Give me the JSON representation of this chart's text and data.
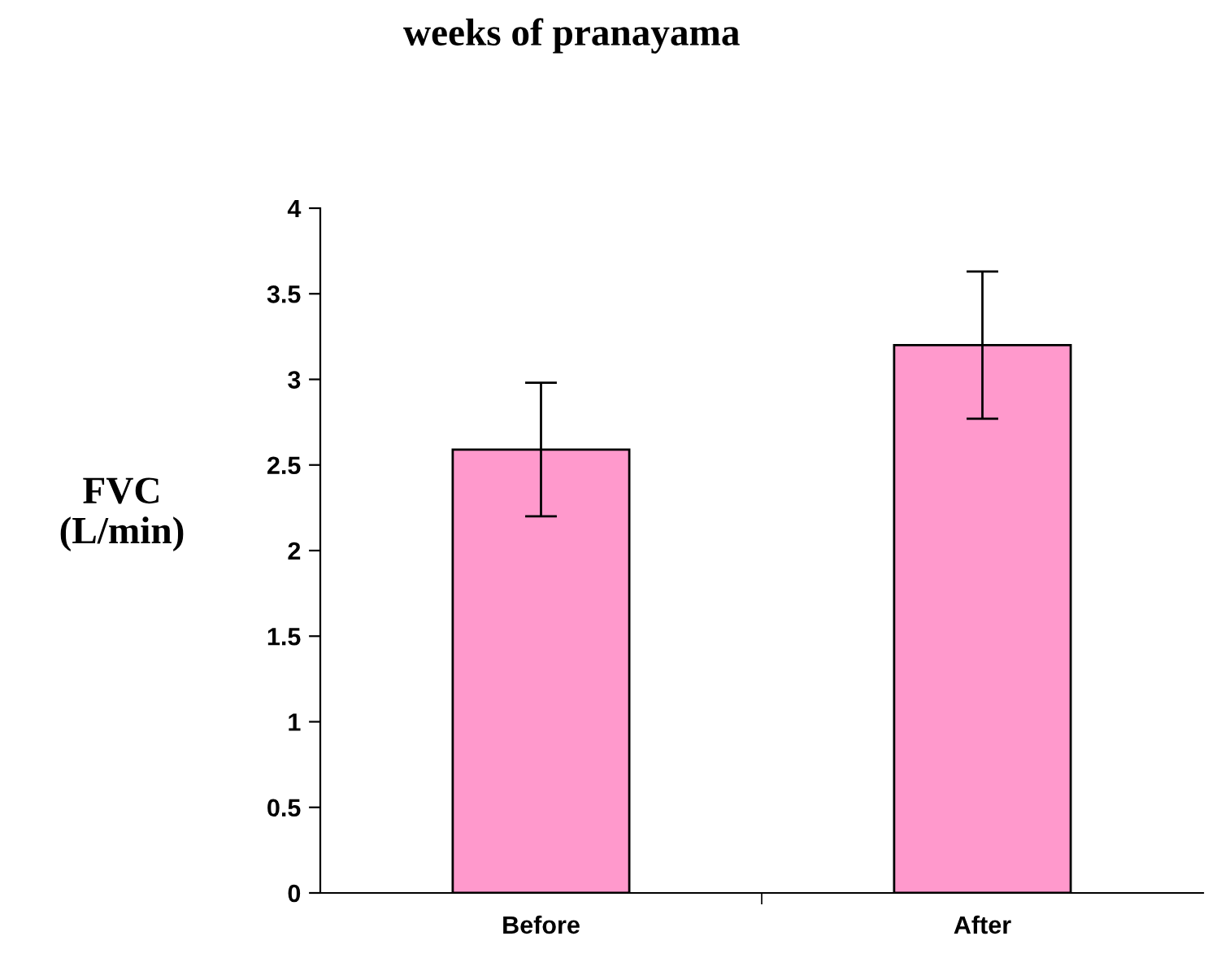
{
  "chart_data": {
    "type": "bar",
    "title": "weeks of pranayama",
    "ylabel": "FVC\n(L/min)",
    "categories": [
      "Before",
      "After"
    ],
    "series": [
      {
        "color": "#ff99cc",
        "values": [
          2.59,
          3.2
        ],
        "errors": [
          0.39,
          0.43
        ]
      }
    ],
    "ylim": [
      0,
      4
    ],
    "yticks": [
      0,
      0.5,
      1,
      1.5,
      2,
      2.5,
      3,
      3.5,
      4
    ],
    "grid": false,
    "legend": false
  }
}
